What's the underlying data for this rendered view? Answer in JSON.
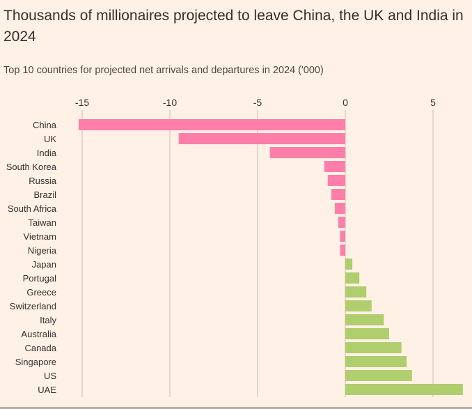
{
  "header": {
    "title": "Thousands of millionaires projected to leave China, the UK and India in 2024",
    "subtitle": "Top 10 countries for projected net arrivals and departures in 2024 ('000)"
  },
  "colors": {
    "negative": "#ff7faa",
    "positive": "#b0ce6e",
    "gridline": "#c9c0b8",
    "text": "#33302e"
  },
  "chart_data": {
    "type": "bar",
    "orientation": "horizontal",
    "title": "Thousands of millionaires projected to leave China, the UK and India in 2024",
    "subtitle": "Top 10 countries for projected net arrivals and departures in 2024 ('000)",
    "categories": [
      "China",
      "UK",
      "India",
      "South Korea",
      "Russia",
      "Brazil",
      "South Africa",
      "Taiwan",
      "Vietnam",
      "Nigeria",
      "Japan",
      "Portugal",
      "Greece",
      "Switzerland",
      "Italy",
      "Australia",
      "Canada",
      "Singapore",
      "US",
      "UAE"
    ],
    "values": [
      -15.2,
      -9.5,
      -4.3,
      -1.2,
      -1.0,
      -0.8,
      -0.6,
      -0.4,
      -0.3,
      -0.3,
      0.4,
      0.8,
      1.2,
      1.5,
      2.2,
      2.5,
      3.2,
      3.5,
      3.8,
      6.7
    ],
    "xlim": [
      -15.9,
      6.7
    ],
    "xticks": [
      -15,
      -10,
      -5,
      0,
      5
    ],
    "xtick_labels": [
      "-15",
      "-10",
      "-5",
      "0",
      "5"
    ],
    "axis_position": "top",
    "grid": true,
    "legend": "none"
  }
}
